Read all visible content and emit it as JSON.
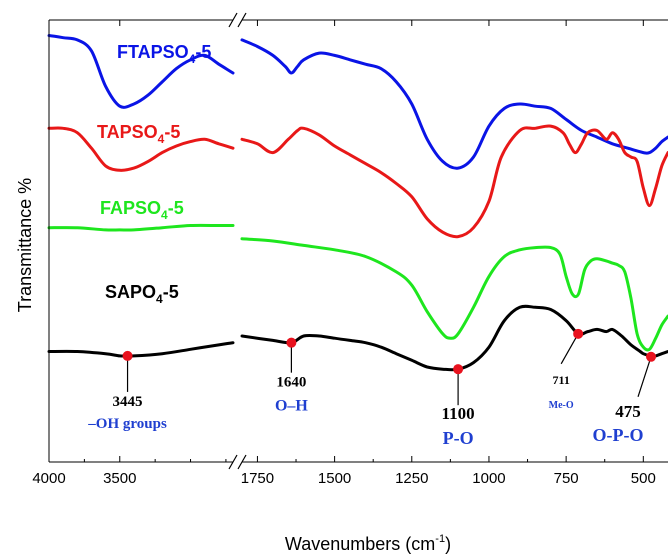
{
  "chart_data": {
    "type": "line",
    "xlabel": "Wavenumbers (cm",
    "xlabel_sup": "-1",
    "xlabel_close": ")",
    "ylabel": "Transmittance %",
    "x_reversed": true,
    "axis_break": "between 2700 and 1800",
    "xlim_left": [
      4000,
      2700
    ],
    "xlim_right": [
      1800,
      420
    ],
    "x_ticks_left": [
      "4000",
      "3500"
    ],
    "x_ticks_right": [
      "1750",
      "1500",
      "1250",
      "1000",
      "750",
      "500"
    ],
    "series": [
      {
        "name": "FTAPSO",
        "name_sub": "4",
        "name_suffix": "-5",
        "color": "#0a14e6",
        "x": [
          4000,
          3900,
          3800,
          3700,
          3600,
          3500,
          3400,
          3300,
          3200,
          3100,
          3000,
          2900,
          2800,
          2700,
          1800,
          1750,
          1700,
          1660,
          1640,
          1620,
          1600,
          1550,
          1500,
          1450,
          1400,
          1350,
          1300,
          1250,
          1200,
          1150,
          1100,
          1050,
          1000,
          950,
          900,
          850,
          800,
          750,
          700,
          650,
          600,
          550,
          500,
          480,
          460,
          440,
          420
        ],
        "y": [
          96.5,
          96,
          95.5,
          93,
          85,
          80.5,
          81,
          83,
          86,
          89,
          91,
          92,
          90,
          88,
          95.5,
          94,
          92,
          89.5,
          88,
          89.5,
          91,
          92.5,
          92,
          91,
          90,
          89,
          86,
          81,
          73,
          68,
          66.5,
          69,
          76,
          80,
          81,
          80.5,
          80,
          77.5,
          75,
          73.5,
          72,
          71,
          70,
          70,
          71,
          72.5,
          73.5
        ]
      },
      {
        "name": "TAPSO",
        "name_sub": "4",
        "name_suffix": "-5",
        "color": "#e81818",
        "x": [
          4000,
          3900,
          3800,
          3700,
          3600,
          3500,
          3400,
          3300,
          3200,
          3100,
          3000,
          2900,
          2800,
          2700,
          1800,
          1750,
          1700,
          1650,
          1620,
          1600,
          1550,
          1500,
          1450,
          1400,
          1350,
          1300,
          1250,
          1200,
          1150,
          1100,
          1050,
          1000,
          960,
          900,
          850,
          800,
          760,
          740,
          720,
          700,
          680,
          650,
          620,
          600,
          580,
          560,
          540,
          520,
          500,
          480,
          460,
          440,
          420
        ],
        "y": [
          75.5,
          75.5,
          74.5,
          71,
          67,
          66,
          66.5,
          68,
          70,
          71.5,
          72.5,
          73,
          72,
          71,
          73,
          72,
          70,
          73,
          75,
          75.5,
          74,
          71.5,
          69.5,
          67.5,
          65.5,
          63,
          60,
          55,
          52,
          51,
          53,
          59,
          69,
          75,
          75.5,
          76,
          74.5,
          72,
          70,
          72,
          74.5,
          75,
          73,
          74.5,
          73,
          70,
          69,
          68,
          62,
          58,
          62,
          67,
          70
        ]
      },
      {
        "name": "FAPSO",
        "name_sub": "4",
        "name_suffix": "-5",
        "color": "#1ee61e",
        "x": [
          4000,
          3800,
          3600,
          3500,
          3400,
          3200,
          3000,
          2800,
          2700,
          1800,
          1700,
          1600,
          1500,
          1400,
          1300,
          1250,
          1200,
          1150,
          1125,
          1100,
          1050,
          1000,
          950,
          900,
          850,
          800,
          770,
          750,
          730,
          710,
          690,
          670,
          650,
          620,
          600,
          580,
          560,
          540,
          520,
          500,
          480,
          460,
          440,
          420
        ],
        "y": [
          53,
          53,
          52.5,
          52.5,
          52.5,
          53,
          53.5,
          53.5,
          53.5,
          50.5,
          50,
          49,
          48,
          46.5,
          43,
          40,
          34,
          29,
          28,
          29,
          35,
          42,
          46.5,
          48,
          48.5,
          48.5,
          47,
          42,
          38,
          38,
          43.5,
          45.5,
          46,
          45.5,
          45,
          44.5,
          43,
          37,
          29,
          26,
          25.5,
          28,
          31,
          33
        ]
      },
      {
        "name": "SAPO",
        "name_sub": "4",
        "name_suffix": "-5",
        "color": "#000000",
        "x": [
          4000,
          3800,
          3600,
          3500,
          3445,
          3400,
          3200,
          3000,
          2800,
          2700,
          1800,
          1700,
          1640,
          1600,
          1550,
          1500,
          1450,
          1400,
          1350,
          1300,
          1250,
          1200,
          1150,
          1100,
          1050,
          1000,
          950,
          900,
          850,
          800,
          750,
          711,
          680,
          650,
          620,
          600,
          570,
          540,
          510,
          500,
          480,
          475,
          460,
          440,
          420
        ],
        "y": [
          25,
          25,
          24.5,
          24,
          24,
          24,
          24.5,
          25.5,
          26.5,
          27,
          28.5,
          27.5,
          27,
          28.5,
          28.5,
          28,
          27.5,
          27,
          26,
          24.5,
          23,
          21.5,
          21,
          21,
          22.5,
          26,
          32,
          35,
          35,
          34.5,
          32,
          29,
          29.5,
          30,
          29.5,
          30,
          28.5,
          26.5,
          25,
          24.5,
          24,
          23.8,
          24,
          24.5,
          25
        ]
      }
    ],
    "annotations": [
      {
        "wavenumber_label": "3445",
        "group": "–OH groups",
        "x": 3445,
        "y": 24
      },
      {
        "wavenumber_label": "1640",
        "group": "O–H",
        "x": 1640,
        "y": 27
      },
      {
        "wavenumber_label": "1100",
        "group": "P-O",
        "x": 1100,
        "y": 21
      },
      {
        "wavenumber_label": "711",
        "group": "Me-O",
        "x": 711,
        "y": 29
      },
      {
        "wavenumber_label": "475",
        "group": "O-P-O",
        "x": 475,
        "y": 23.8
      }
    ],
    "marker_color": "#e8121e"
  }
}
